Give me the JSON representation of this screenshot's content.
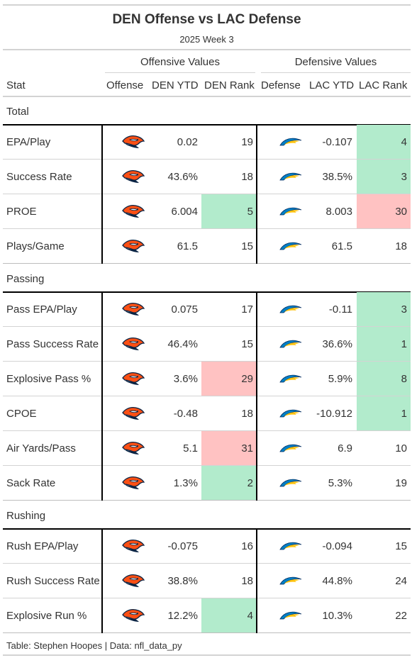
{
  "header": {
    "title": "DEN Offense vs LAC Defense",
    "subtitle": "2025 Week 3"
  },
  "spanners": {
    "offense": "Offensive Values",
    "defense": "Defensive Values"
  },
  "columns": {
    "stat": "Stat",
    "offense": "Offense",
    "den_ytd": "DEN YTD",
    "den_rank": "DEN Rank",
    "defense": "Defense",
    "lac_ytd": "LAC YTD",
    "lac_rank": "LAC Rank"
  },
  "logos": {
    "offense": "broncos-logo",
    "defense": "chargers-logo"
  },
  "colors": {
    "good": "#b2ebcc",
    "bad": "#ffc2c2",
    "rule": "#d3d3d3",
    "divider": "#000000"
  },
  "groups": [
    {
      "label": "Total",
      "rows": [
        {
          "stat": "EPA/Play",
          "den_ytd": "0.02",
          "den_rank": "19",
          "den_tone": "none",
          "lac_ytd": "-0.107",
          "lac_rank": "4",
          "lac_tone": "good"
        },
        {
          "stat": "Success Rate",
          "den_ytd": "43.6%",
          "den_rank": "18",
          "den_tone": "none",
          "lac_ytd": "38.5%",
          "lac_rank": "3",
          "lac_tone": "good"
        },
        {
          "stat": "PROE",
          "den_ytd": "6.004",
          "den_rank": "5",
          "den_tone": "good",
          "lac_ytd": "8.003",
          "lac_rank": "30",
          "lac_tone": "bad"
        },
        {
          "stat": "Plays/Game",
          "den_ytd": "61.5",
          "den_rank": "15",
          "den_tone": "none",
          "lac_ytd": "61.5",
          "lac_rank": "18",
          "lac_tone": "none"
        }
      ]
    },
    {
      "label": "Passing",
      "rows": [
        {
          "stat": "Pass EPA/Play",
          "den_ytd": "0.075",
          "den_rank": "17",
          "den_tone": "none",
          "lac_ytd": "-0.11",
          "lac_rank": "3",
          "lac_tone": "good"
        },
        {
          "stat": "Pass Success Rate",
          "den_ytd": "46.4%",
          "den_rank": "15",
          "den_tone": "none",
          "lac_ytd": "36.6%",
          "lac_rank": "1",
          "lac_tone": "good"
        },
        {
          "stat": "Explosive Pass %",
          "den_ytd": "3.6%",
          "den_rank": "29",
          "den_tone": "bad",
          "lac_ytd": "5.9%",
          "lac_rank": "8",
          "lac_tone": "good"
        },
        {
          "stat": "CPOE",
          "den_ytd": "-0.48",
          "den_rank": "18",
          "den_tone": "none",
          "lac_ytd": "-10.912",
          "lac_rank": "1",
          "lac_tone": "good"
        },
        {
          "stat": "Air Yards/Pass",
          "den_ytd": "5.1",
          "den_rank": "31",
          "den_tone": "bad",
          "lac_ytd": "6.9",
          "lac_rank": "10",
          "lac_tone": "none"
        },
        {
          "stat": "Sack Rate",
          "den_ytd": "1.3%",
          "den_rank": "2",
          "den_tone": "good",
          "lac_ytd": "5.3%",
          "lac_rank": "19",
          "lac_tone": "none"
        }
      ]
    },
    {
      "label": "Rushing",
      "rows": [
        {
          "stat": "Rush EPA/Play",
          "den_ytd": "-0.075",
          "den_rank": "16",
          "den_tone": "none",
          "lac_ytd": "-0.094",
          "lac_rank": "15",
          "lac_tone": "none"
        },
        {
          "stat": "Rush Success Rate",
          "den_ytd": "38.8%",
          "den_rank": "18",
          "den_tone": "none",
          "lac_ytd": "44.8%",
          "lac_rank": "24",
          "lac_tone": "none"
        },
        {
          "stat": "Explosive Run %",
          "den_ytd": "12.2%",
          "den_rank": "4",
          "den_tone": "good",
          "lac_ytd": "10.3%",
          "lac_rank": "22",
          "lac_tone": "none"
        }
      ]
    }
  ],
  "footer": "Table: Stephen Hoopes | Data: nfl_data_py"
}
